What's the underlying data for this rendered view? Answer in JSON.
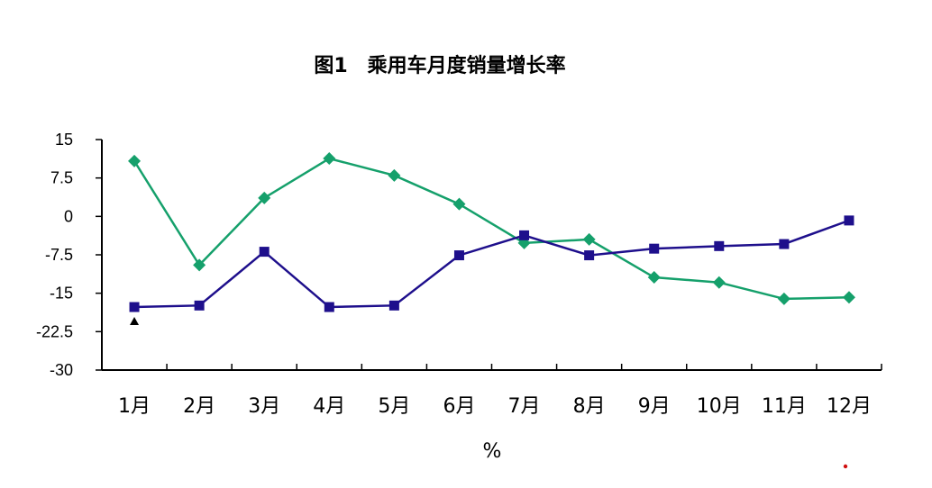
{
  "chart_data": {
    "type": "line",
    "title": "图1　乘用车月度销量增长率",
    "xlabel": "%",
    "ylabel": "",
    "ylim": [
      -30,
      15
    ],
    "yticks": [
      "15",
      "7.5",
      "0",
      "-7.5",
      "-15",
      "-22.5",
      "-30"
    ],
    "ytick_values": [
      15,
      7.5,
      0,
      -7.5,
      -15,
      -22.5,
      -30
    ],
    "categories": [
      "1月",
      "2月",
      "3月",
      "4月",
      "5月",
      "6月",
      "7月",
      "8月",
      "9月",
      "10月",
      "11月",
      "12月"
    ],
    "grid": false,
    "legend": "none",
    "series": [
      {
        "color": "#15a06b",
        "marker": "diamond",
        "values": [
          10.8,
          -9.5,
          3.6,
          11.3,
          8.0,
          2.4,
          -5.2,
          -4.5,
          -11.9,
          -12.9,
          -16.1,
          -15.8
        ]
      },
      {
        "color": "#1e0f8c",
        "marker": "square",
        "values": [
          -17.7,
          -17.4,
          -6.9,
          -17.7,
          -17.4,
          -7.6,
          -3.7,
          -7.6,
          -6.3,
          -5.8,
          -5.4,
          -0.8
        ]
      }
    ],
    "annotations": [
      {
        "type": "marker",
        "shape": "triangle",
        "color": "#000000",
        "category": "1月",
        "y": -20.5
      }
    ]
  }
}
